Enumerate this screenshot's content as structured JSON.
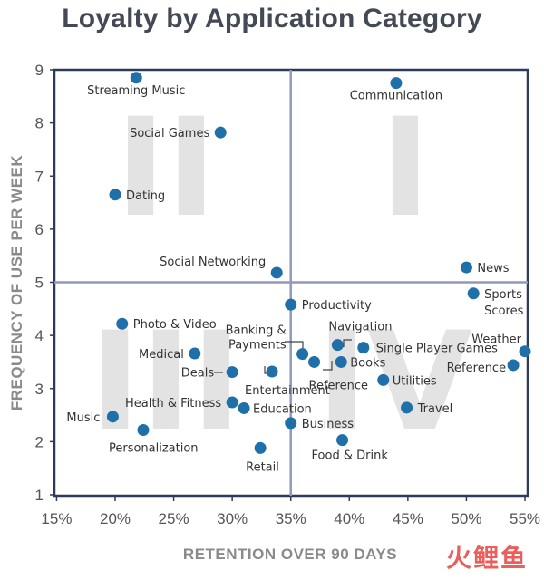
{
  "chart_data": {
    "type": "scatter",
    "title": "Loyalty by Application Category",
    "xlabel": "RETENTION OVER 90 DAYS",
    "ylabel": "FREQUENCY OF USE PER WEEK",
    "xlim": [
      15,
      55
    ],
    "ylim": [
      1,
      9
    ],
    "x_ticks": [
      "15%",
      "20%",
      "25%",
      "30%",
      "35%",
      "40%",
      "45%",
      "50%",
      "55%"
    ],
    "x_tick_values": [
      15,
      20,
      25,
      30,
      35,
      40,
      45,
      50,
      55
    ],
    "y_ticks": [
      "1",
      "2",
      "3",
      "4",
      "5",
      "6",
      "7",
      "8",
      "9"
    ],
    "y_tick_values": [
      1,
      2,
      3,
      4,
      5,
      6,
      7,
      8,
      9
    ],
    "quadrant_divider": {
      "x": 35,
      "y": 5
    },
    "quadrant_labels": [
      "I",
      "II",
      "III",
      "IV"
    ],
    "grid": false,
    "colors": {
      "point": "#1f6fa8",
      "frame": "#2d3a5a",
      "divider": "#8f9ab8",
      "quadrant_text": "#e3e3e3",
      "label": "#333333",
      "axis_title": "#8a8a8a"
    },
    "points": [
      {
        "label": "Streaming Music",
        "x": 21.8,
        "y": 8.85
      },
      {
        "label": "Communication",
        "x": 44.0,
        "y": 8.75
      },
      {
        "label": "Social Games",
        "x": 29.0,
        "y": 7.82
      },
      {
        "label": "Dating",
        "x": 20.0,
        "y": 6.65
      },
      {
        "label": "Social Networking",
        "x": 33.8,
        "y": 5.18
      },
      {
        "label": "News",
        "x": 50.0,
        "y": 5.28
      },
      {
        "label": "Sports Scores",
        "x": 50.6,
        "y": 4.79
      },
      {
        "label": "Productivity",
        "x": 35.0,
        "y": 4.58
      },
      {
        "label": "Photo & Video",
        "x": 20.6,
        "y": 4.22
      },
      {
        "label": "Navigation",
        "x": 39.0,
        "y": 3.82
      },
      {
        "label": "Single Player Games",
        "x": 41.2,
        "y": 3.77
      },
      {
        "label": "Weather",
        "x": 55.0,
        "y": 3.7
      },
      {
        "label": "Medical",
        "x": 26.8,
        "y": 3.66
      },
      {
        "label": "Banking & Payments",
        "x": 36.0,
        "y": 3.65
      },
      {
        "label": "Reference",
        "x": 37.0,
        "y": 3.5
      },
      {
        "label": "Books",
        "x": 39.3,
        "y": 3.5
      },
      {
        "label": "Reference",
        "x": 54.0,
        "y": 3.44
      },
      {
        "label": "Deals",
        "x": 30.0,
        "y": 3.31
      },
      {
        "label": "Entertainment",
        "x": 33.4,
        "y": 3.32
      },
      {
        "label": "Utilities",
        "x": 42.9,
        "y": 3.16
      },
      {
        "label": "Health & Fitness",
        "x": 30.0,
        "y": 2.74
      },
      {
        "label": "Education",
        "x": 31.0,
        "y": 2.63
      },
      {
        "label": "Travel",
        "x": 44.9,
        "y": 2.64
      },
      {
        "label": "Music",
        "x": 19.8,
        "y": 2.47
      },
      {
        "label": "Business",
        "x": 35.0,
        "y": 2.35
      },
      {
        "label": "Personalization",
        "x": 22.4,
        "y": 2.22
      },
      {
        "label": "Food & Drink",
        "x": 39.4,
        "y": 2.03
      },
      {
        "label": "Retail",
        "x": 32.4,
        "y": 1.88
      }
    ]
  },
  "watermark": "火鲤鱼"
}
